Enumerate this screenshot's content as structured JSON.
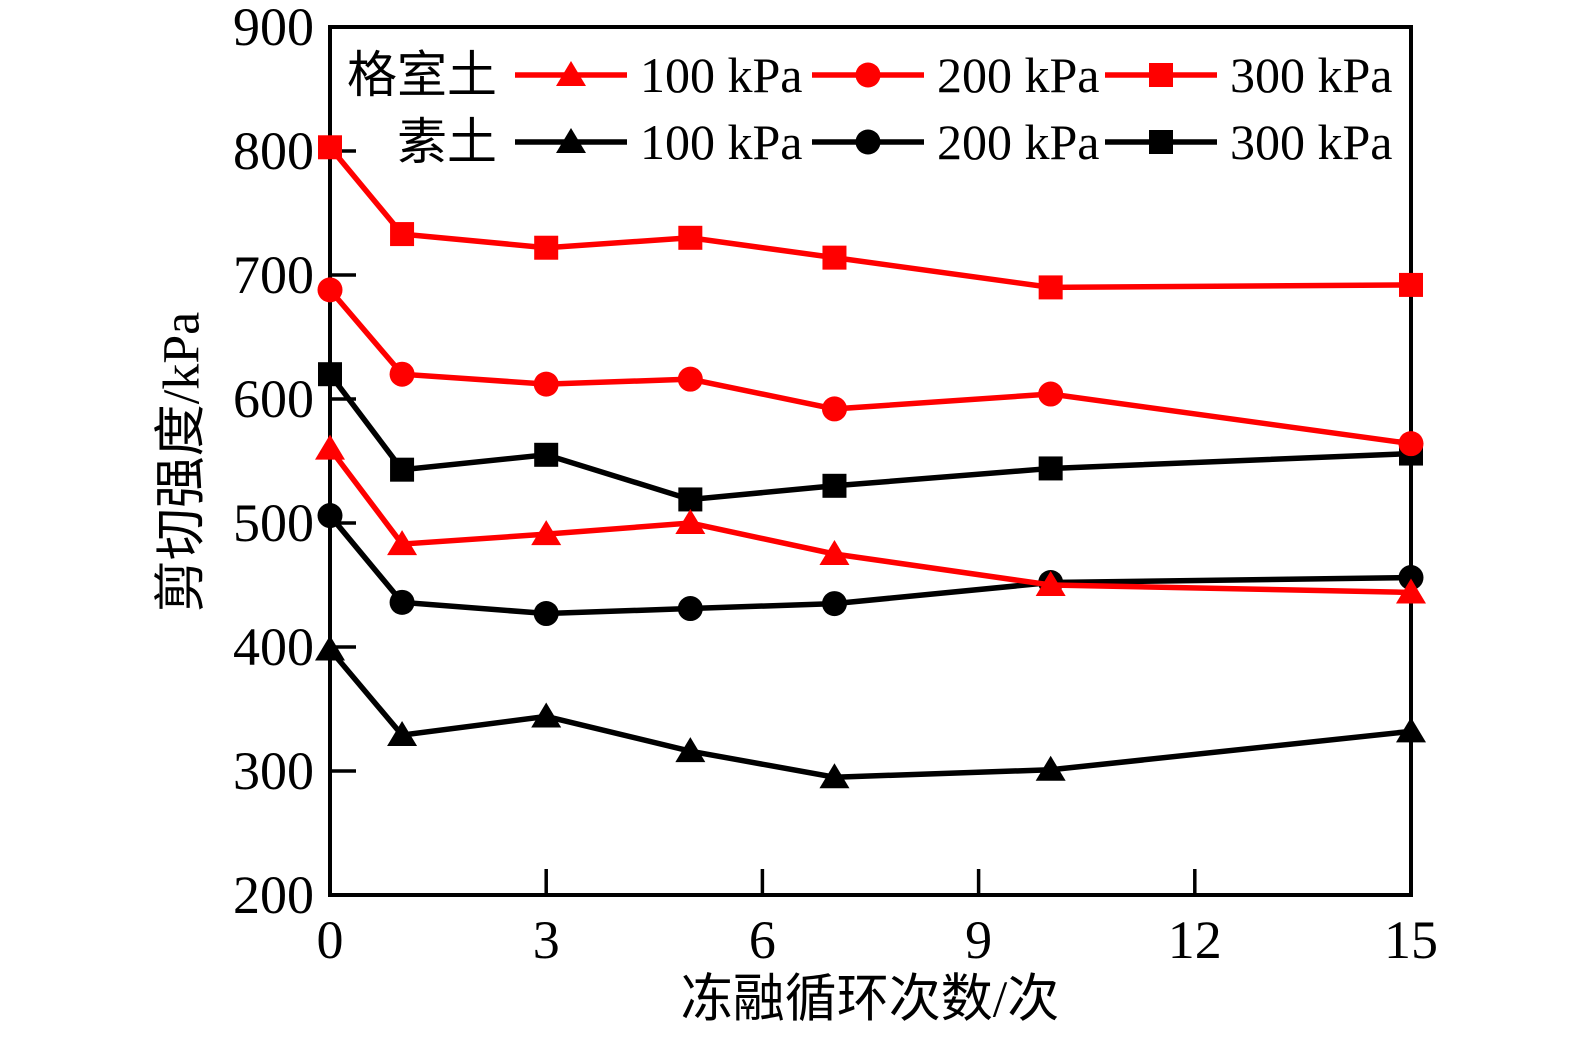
{
  "chart_data": {
    "type": "line",
    "title": "",
    "xlabel": "冻融循环次数/次",
    "ylabel": "剪切强度/kPa",
    "x": [
      0,
      1,
      3,
      5,
      7,
      10,
      15
    ],
    "xlim": [
      0,
      15
    ],
    "ylim": [
      200,
      900
    ],
    "x_ticks": [
      0,
      3,
      6,
      9,
      12,
      15
    ],
    "y_ticks": [
      200,
      300,
      400,
      500,
      600,
      700,
      800,
      900
    ],
    "grid": false,
    "legend_position": "top-inside",
    "colors": {
      "geocell": "#ff0000",
      "plain": "#000000"
    },
    "series": [
      {
        "name": "plain-100kpa",
        "group": "素土",
        "label": "100 kPa",
        "color": "#000000",
        "marker": "triangle",
        "values": [
          398,
          329,
          344,
          316,
          295,
          301,
          332
        ]
      },
      {
        "name": "plain-200kpa",
        "group": "素土",
        "label": "200 kPa",
        "color": "#000000",
        "marker": "circle",
        "values": [
          506,
          436,
          427,
          431,
          435,
          452,
          456
        ]
      },
      {
        "name": "plain-300kpa",
        "group": "素土",
        "label": "300 kPa",
        "color": "#000000",
        "marker": "square",
        "values": [
          620,
          543,
          555,
          519,
          530,
          544,
          556
        ]
      },
      {
        "name": "geocell-100kpa",
        "group": "格室土",
        "label": "100 kPa",
        "color": "#ff0000",
        "marker": "triangle",
        "values": [
          560,
          483,
          491,
          500,
          475,
          450,
          444
        ]
      },
      {
        "name": "geocell-200kpa",
        "group": "格室土",
        "label": "200 kPa",
        "color": "#ff0000",
        "marker": "circle",
        "values": [
          688,
          620,
          612,
          616,
          592,
          604,
          564
        ]
      },
      {
        "name": "geocell-300kpa",
        "group": "格室土",
        "label": "300 kPa",
        "color": "#ff0000",
        "marker": "square",
        "values": [
          803,
          733,
          722,
          730,
          714,
          690,
          692
        ]
      }
    ],
    "legend": {
      "rows": [
        {
          "group": "格室土",
          "color": "#ff0000",
          "entries": [
            {
              "label": "100 kPa",
              "marker": "triangle"
            },
            {
              "label": "200 kPa",
              "marker": "circle"
            },
            {
              "label": "300 kPa",
              "marker": "square"
            }
          ]
        },
        {
          "group": "素土",
          "color": "#000000",
          "entries": [
            {
              "label": "100 kPa",
              "marker": "triangle"
            },
            {
              "label": "200 kPa",
              "marker": "circle"
            },
            {
              "label": "300 kPa",
              "marker": "square"
            }
          ]
        }
      ]
    }
  }
}
